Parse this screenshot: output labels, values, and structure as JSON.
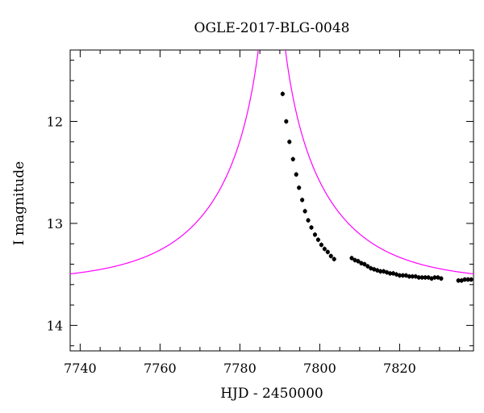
{
  "chart_data": {
    "type": "scatter",
    "title": "OGLE-2017-BLG-0048",
    "xlabel": "HJD - 2450000",
    "ylabel": "I magnitude",
    "xlim": [
      7737.5,
      7838.5
    ],
    "ylim": [
      14.25,
      11.3
    ],
    "y_inverted": true,
    "x_ticks": [
      7740,
      7760,
      7780,
      7800,
      7820
    ],
    "y_ticks": [
      12,
      13,
      14
    ],
    "grid": false,
    "colors": {
      "model": "#ff00ff",
      "points": "#000000",
      "axes": "#000000"
    },
    "model": {
      "name": "",
      "base_mag": 13.58,
      "t0": 7788.0,
      "tE": 28.0,
      "u0": 0.02,
      "color": "#ff00ff"
    },
    "series": [
      {
        "name": "",
        "x": [
          7790.7,
          7791.6,
          7792.4,
          7793.3,
          7794.1,
          7794.8,
          7795.6,
          7796.3,
          7797.1,
          7797.9,
          7798.8,
          7799.6,
          7800.4,
          7801.2,
          7802.0,
          7802.8,
          7803.6,
          7808.0,
          7808.8,
          7809.6,
          7810.4,
          7811.2,
          7812.0,
          7812.8,
          7813.6,
          7814.4,
          7815.2,
          7816.0,
          7816.8,
          7817.6,
          7818.4,
          7819.2,
          7820.0,
          7820.8,
          7821.6,
          7822.4,
          7823.2,
          7824.0,
          7824.8,
          7825.6,
          7826.4,
          7827.2,
          7828.0,
          7828.8,
          7829.6,
          7830.4,
          7834.7,
          7835.5,
          7836.3,
          7837.1,
          7837.9
        ],
        "y": [
          11.73,
          12.0,
          12.2,
          12.37,
          12.52,
          12.65,
          12.77,
          12.88,
          12.97,
          13.04,
          13.11,
          13.16,
          13.21,
          13.25,
          13.28,
          13.32,
          13.35,
          13.34,
          13.36,
          13.37,
          13.39,
          13.4,
          13.42,
          13.44,
          13.45,
          13.46,
          13.47,
          13.47,
          13.48,
          13.49,
          13.49,
          13.5,
          13.51,
          13.51,
          13.51,
          13.52,
          13.52,
          13.52,
          13.53,
          13.53,
          13.53,
          13.53,
          13.54,
          13.53,
          13.53,
          13.54,
          13.56,
          13.56,
          13.55,
          13.55,
          13.55
        ],
        "color": "#000000"
      }
    ]
  }
}
